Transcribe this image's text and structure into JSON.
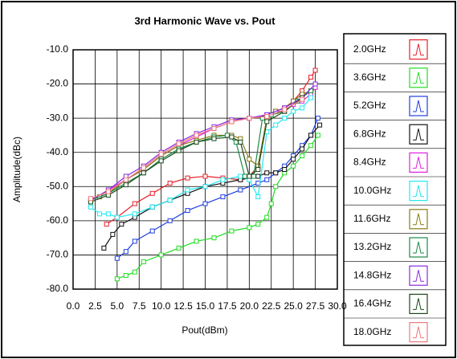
{
  "chart_data": {
    "type": "line",
    "title": "3rd Harmonic Wave vs. Pout",
    "xlabel": "Pout(dBm)",
    "ylabel": "Amplitude(dBc)",
    "xlim": [
      0,
      30
    ],
    "ylim": [
      -80,
      -10
    ],
    "xticks": [
      {
        "value": 0,
        "label": "0.0"
      },
      {
        "value": 2.5,
        "label": "2.5"
      },
      {
        "value": 5,
        "label": "5.0"
      },
      {
        "value": 7.5,
        "label": "7.5"
      },
      {
        "value": 10,
        "label": "10.0"
      },
      {
        "value": 12.5,
        "label": "12.5"
      },
      {
        "value": 15,
        "label": "15.0"
      },
      {
        "value": 17.5,
        "label": "17.5"
      },
      {
        "value": 20,
        "label": "20.0"
      },
      {
        "value": 22.5,
        "label": "22.5"
      },
      {
        "value": 25,
        "label": "25.0"
      },
      {
        "value": 27.5,
        "label": "27.5"
      },
      {
        "value": 30,
        "label": "30.0"
      }
    ],
    "yticks": [
      {
        "value": -10,
        "label": "-10.0"
      },
      {
        "value": -20,
        "label": "-20.0"
      },
      {
        "value": -30,
        "label": "-30.0"
      },
      {
        "value": -40,
        "label": "-40.0"
      },
      {
        "value": -50,
        "label": "-50.0"
      },
      {
        "value": -60,
        "label": "-60.0"
      },
      {
        "value": -70,
        "label": "-70.0"
      },
      {
        "value": -80,
        "label": "-80.0"
      }
    ],
    "grid": true,
    "legend": "right",
    "series": [
      {
        "name": "2.0GHz",
        "color": "#e8202a",
        "x": [
          3.8,
          5,
          7,
          9,
          11,
          13,
          15,
          17,
          19,
          20,
          21,
          22,
          23,
          24,
          25,
          26,
          27,
          27.5
        ],
        "values": [
          -61,
          -59,
          -55,
          -52,
          -49,
          -47.5,
          -47,
          -47.5,
          -48,
          -47,
          -44,
          -30,
          -28,
          -27,
          -25,
          -22,
          -18,
          -16
        ]
      },
      {
        "name": "3.6GHz",
        "color": "#22dd22",
        "x": [
          5,
          6,
          7,
          8,
          10,
          12,
          14,
          16,
          18,
          20,
          21,
          22,
          22.5,
          23,
          24,
          25,
          26,
          27,
          27.8
        ],
        "values": [
          -77,
          -76,
          -75,
          -72,
          -70,
          -68,
          -66,
          -65,
          -63,
          -62,
          -61,
          -59,
          -55,
          -50,
          -46,
          -44,
          -41,
          -38,
          -35
        ]
      },
      {
        "name": "5.2GHz",
        "color": "#1f3fe0",
        "x": [
          5,
          6,
          7,
          9,
          11,
          13,
          15,
          17,
          19,
          21,
          22,
          23,
          24,
          25,
          26,
          27,
          27.8
        ],
        "values": [
          -71,
          -69,
          -66,
          -63,
          -60,
          -57,
          -55,
          -53,
          -51,
          -49,
          -48,
          -46,
          -44,
          -41,
          -38,
          -35,
          -30
        ]
      },
      {
        "name": "6.8GHz",
        "color": "#111111",
        "x": [
          3.5,
          4.5,
          5.5,
          7,
          9,
          11,
          13,
          15,
          17,
          19,
          21,
          22,
          23,
          24,
          25,
          26,
          27,
          28
        ],
        "values": [
          -68,
          -64,
          -61,
          -59,
          -56,
          -54,
          -52,
          -50,
          -49,
          -48,
          -47,
          -46,
          -46,
          -45,
          -42,
          -39,
          -35,
          -32
        ]
      },
      {
        "name": "8.4GHz",
        "color": "#e020e0",
        "x": [
          2,
          3,
          4,
          6,
          8,
          10,
          12,
          14,
          16,
          18,
          20,
          22,
          23,
          24,
          25,
          26,
          27,
          27.5
        ],
        "values": [
          -54,
          -53,
          -51,
          -48,
          -45,
          -41,
          -38,
          -35.5,
          -33,
          -31,
          -30,
          -29,
          -28,
          -28,
          -26,
          -25,
          -23,
          -21
        ]
      },
      {
        "name": "10.0GHz",
        "color": "#22e8f0",
        "x": [
          2,
          3,
          4,
          5,
          7,
          9,
          11,
          13,
          15,
          17,
          19,
          20,
          21,
          22,
          23,
          24,
          25,
          26,
          27
        ],
        "values": [
          -56,
          -58,
          -58,
          -59,
          -58,
          -56,
          -54,
          -51,
          -50,
          -48,
          -47,
          -48,
          -53,
          -34,
          -32,
          -30,
          -28,
          -27,
          -24
        ]
      },
      {
        "name": "11.6GHz",
        "color": "#8a7a10",
        "x": [
          2,
          3,
          4,
          6,
          8,
          10,
          12,
          14,
          16,
          18,
          19,
          20,
          21,
          22,
          23,
          24,
          25,
          26,
          27
        ],
        "values": [
          -54,
          -53,
          -52,
          -48,
          -45,
          -41,
          -38,
          -36.5,
          -35,
          -35,
          -36,
          -42,
          -44,
          -30,
          -28,
          -27,
          -25,
          -23,
          -22
        ]
      },
      {
        "name": "13.2GHz",
        "color": "#1a8a4a",
        "x": [
          2,
          4,
          6,
          8,
          10,
          12,
          14,
          16,
          17.5,
          18.5,
          19.5,
          20.5,
          21.5,
          22.5,
          24,
          25.5,
          27
        ],
        "values": [
          -54,
          -52,
          -49,
          -46,
          -42,
          -39,
          -37,
          -35.5,
          -35,
          -37,
          -47,
          -47,
          -30,
          -29,
          -28,
          -25,
          -22
        ]
      },
      {
        "name": "14.8GHz",
        "color": "#8a2ae0",
        "x": [
          2,
          4,
          6,
          8,
          10,
          12,
          14,
          16,
          18,
          20,
          22,
          24,
          26,
          27.5
        ],
        "values": [
          -54,
          -51,
          -47,
          -44,
          -40,
          -37,
          -34.5,
          -32.5,
          -30.5,
          -30,
          -29,
          -27,
          -24,
          -20
        ]
      },
      {
        "name": "16.4GHz",
        "color": "#1a4a1a",
        "x": [
          2,
          4,
          6,
          8,
          10,
          12,
          14,
          16,
          18,
          19,
          20,
          21,
          22,
          24,
          26
        ],
        "values": [
          -54.5,
          -52.5,
          -49.5,
          -46,
          -42.5,
          -39.5,
          -37,
          -36,
          -35.5,
          -37,
          -47,
          -45,
          -31,
          -28,
          -24
        ]
      },
      {
        "name": "18.0GHz",
        "color": "#f07878",
        "x": [
          2,
          4,
          6,
          8,
          10,
          12,
          14,
          16,
          18,
          20,
          22,
          24,
          26
        ],
        "values": [
          -53.5,
          -51.5,
          -48,
          -44.5,
          -40.5,
          -37.5,
          -35,
          -33,
          -31,
          -30,
          -29.5,
          -27.5,
          -24.5
        ]
      }
    ]
  }
}
